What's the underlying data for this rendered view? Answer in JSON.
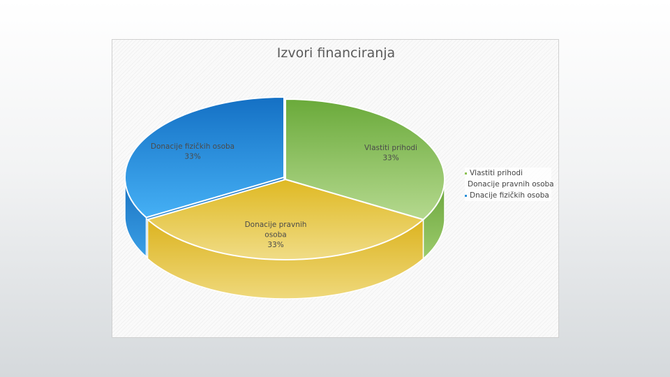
{
  "chart_data": {
    "type": "pie",
    "title": "Izvori financiranja",
    "style": "3d",
    "slices": [
      {
        "label": "Vlastiti prihodi",
        "value": 33,
        "percent_label": "33%",
        "data_label": [
          "Vlastiti prihodi",
          "33%"
        ],
        "color": "#8cc152"
      },
      {
        "label": "Donacije pravnih osoba",
        "value": 33,
        "percent_label": "33%",
        "data_label": [
          "Donacije pravnih",
          "osoba",
          "33%"
        ],
        "color": "#e8c23a"
      },
      {
        "label": "Dnacije fizičkih osoba",
        "value": 33,
        "percent_label": "33%",
        "data_label": [
          "Donacije fizičkih osoba",
          "33%"
        ],
        "color": "#2a8fd8"
      }
    ],
    "legend": {
      "position": "right",
      "entries": [
        "Vlastiti prihodi",
        "Donacije pravnih osoba",
        "Dnacije fizičkih osoba"
      ]
    }
  }
}
